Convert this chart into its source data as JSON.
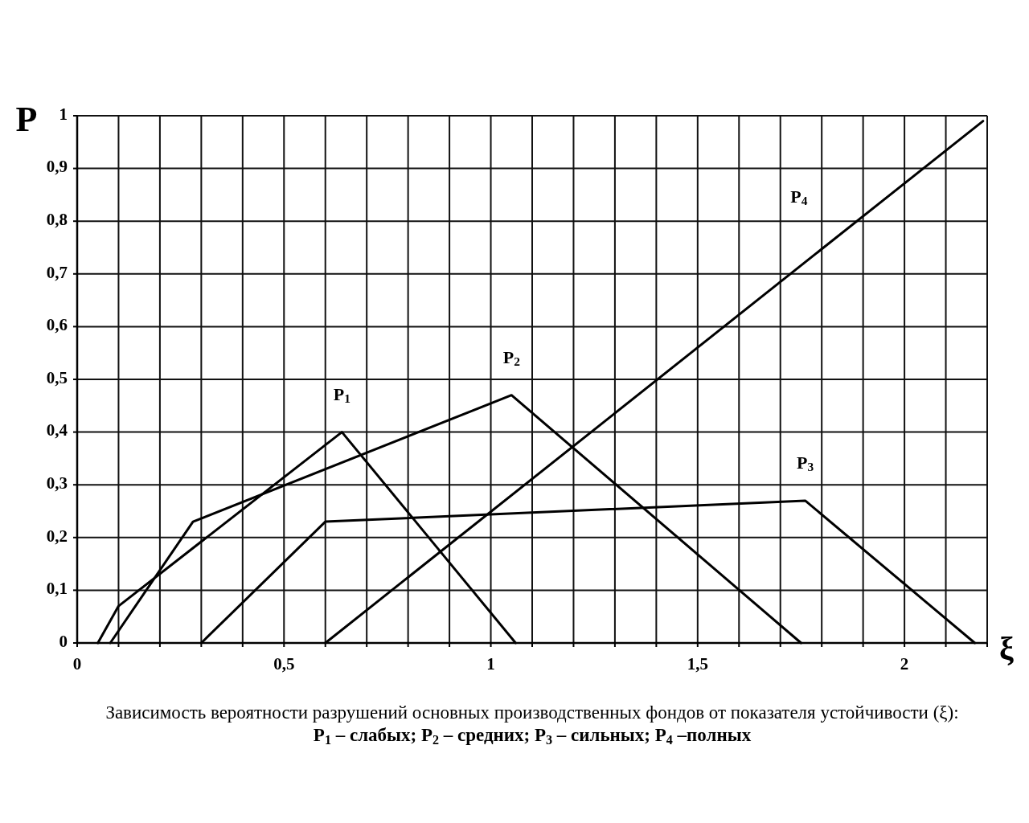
{
  "chart_data": {
    "type": "line",
    "xlabel": "ξ",
    "ylabel": "P",
    "annotations": [
      "Зависимость вероятности разрушений основных производственных фондов от показателя устойчивости (ξ):",
      "P$_{1}$ – слабых; P$_{2}$ – средних; P$_{3}$ – сильных; P$_{4}$ –полных"
    ],
    "xlim": [
      0,
      2.2
    ],
    "ylim": [
      0,
      1
    ],
    "xticks": [
      0,
      {
        "value": 0.1,
        "label": null
      },
      {
        "value": 0.2,
        "label": null
      },
      {
        "value": 0.3,
        "label": null
      },
      {
        "value": 0.4,
        "label": null
      },
      {
        "value": 0.5,
        "label": "0,5"
      },
      {
        "value": 0.6,
        "label": null
      },
      {
        "value": 0.7,
        "label": null
      },
      {
        "value": 0.8,
        "label": null
      },
      {
        "value": 0.9,
        "label": null
      },
      1,
      {
        "value": 1.1,
        "label": null
      },
      {
        "value": 1.2,
        "label": null
      },
      {
        "value": 1.3,
        "label": null
      },
      {
        "value": 1.4,
        "label": null
      },
      {
        "value": 1.5,
        "label": "1,5"
      },
      {
        "value": 1.6,
        "label": null
      },
      {
        "value": 1.7,
        "label": null
      },
      {
        "value": 1.8,
        "label": null
      },
      {
        "value": 1.9,
        "label": null
      },
      2,
      {
        "value": 2.1,
        "label": null
      },
      {
        "value": 2.2,
        "label": null
      }
    ],
    "yticks": [
      0,
      {
        "value": 0.1,
        "label": "0,1"
      },
      {
        "value": 0.2,
        "label": "0,2"
      },
      {
        "value": 0.3,
        "label": "0,3"
      },
      {
        "value": 0.4,
        "label": "0,4"
      },
      {
        "value": 0.5,
        "label": "0,5"
      },
      {
        "value": 0.6,
        "label": "0,6"
      },
      {
        "value": 0.7,
        "label": "0,7"
      },
      {
        "value": 0.8,
        "label": "0,8"
      },
      {
        "value": 0.9,
        "label": "0,9"
      },
      1
    ],
    "grid": true,
    "series": [
      {
        "name": "P$_{1}$",
        "color": "#000000",
        "x": [
          0.05,
          0.1,
          0.64,
          1.06
        ],
        "values": [
          0,
          0.07,
          0.4,
          0
        ]
      },
      {
        "name": "P$_{2}$",
        "color": "#000000",
        "x": [
          0.08,
          0.28,
          1.05,
          1.75
        ],
        "values": [
          0,
          0.23,
          0.47,
          0
        ]
      },
      {
        "name": "P$_{3}$",
        "color": "#000000",
        "x": [
          0.3,
          0.6,
          1.76,
          2.17
        ],
        "values": [
          0,
          0.23,
          0.27,
          0
        ]
      },
      {
        "name": "P$_{4}$",
        "color": "#000000",
        "x": [
          0.6,
          2.19
        ],
        "values": [
          0,
          0.99
        ]
      }
    ]
  }
}
